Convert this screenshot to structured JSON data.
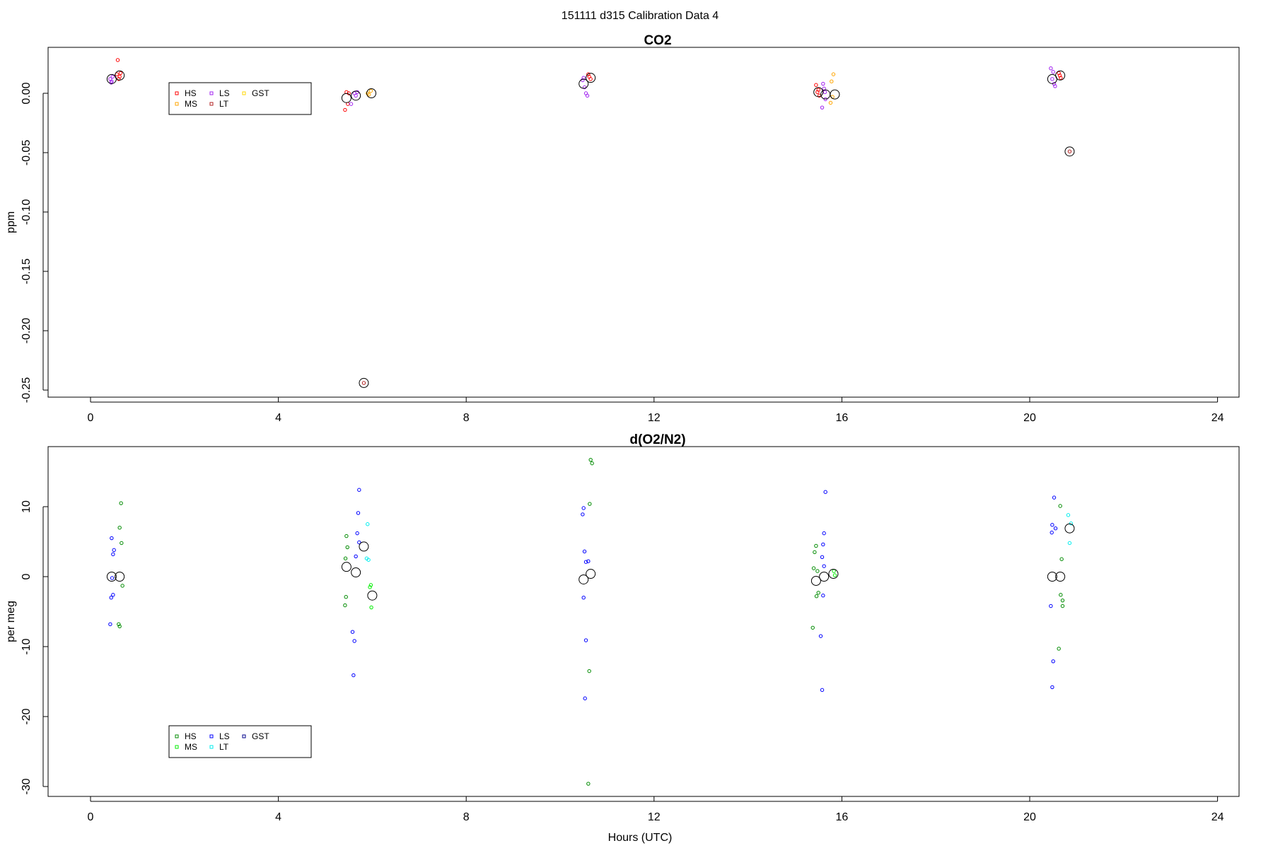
{
  "title": "151111   d315   Calibration Data 4",
  "xlabel": "Hours (UTC)",
  "chart_data": [
    {
      "type": "scatter",
      "title": "CO2",
      "xlabel": "",
      "ylabel": "ppm",
      "xlim": [
        0,
        24
      ],
      "ylim": [
        -0.25,
        0.03
      ],
      "xticks": [
        "0",
        "4",
        "8",
        "12",
        "16",
        "20",
        "24"
      ],
      "yticks": [
        "0.00",
        "-0.05",
        "-0.10",
        "-0.15",
        "-0.20",
        "-0.25"
      ],
      "legend_position": "top-left",
      "legend": [
        {
          "label": "HS",
          "color": "#ff0000"
        },
        {
          "label": "MS",
          "color": "#ffa500"
        },
        {
          "label": "LS",
          "color": "#a020f0"
        },
        {
          "label": "LT",
          "color": "#b22222"
        },
        {
          "label": "GST",
          "color": "#ffd700"
        }
      ],
      "series": [
        {
          "name": "HS",
          "color": "#ff0000",
          "points": [
            [
              0.58,
              0.028
            ],
            [
              0.56,
              0.016
            ],
            [
              0.62,
              0.014
            ],
            [
              0.6,
              0.012
            ],
            [
              0.64,
              0.017
            ],
            [
              5.42,
              -0.014
            ],
            [
              5.48,
              -0.009
            ],
            [
              5.45,
              0.001
            ],
            [
              5.5,
              0.0
            ],
            [
              10.6,
              0.016
            ],
            [
              10.65,
              0.012
            ],
            [
              10.62,
              0.014
            ],
            [
              15.45,
              0.007
            ],
            [
              15.5,
              0.003
            ],
            [
              15.52,
              -0.002
            ],
            [
              15.48,
              0.001
            ],
            [
              20.62,
              0.017
            ],
            [
              20.66,
              0.013
            ],
            [
              20.64,
              0.015
            ]
          ]
        },
        {
          "name": "MS",
          "color": "#ffa500",
          "points": [
            [
              5.93,
              -0.001
            ],
            [
              5.97,
              0.002
            ],
            [
              5.9,
              0.0
            ],
            [
              15.82,
              0.016
            ],
            [
              15.78,
              0.01
            ],
            [
              15.76,
              -0.008
            ],
            [
              15.8,
              -0.003
            ]
          ]
        },
        {
          "name": "LS",
          "color": "#a020f0",
          "points": [
            [
              0.42,
              0.012
            ],
            [
              0.45,
              0.01
            ],
            [
              0.47,
              0.014
            ],
            [
              0.44,
              0.009
            ],
            [
              5.55,
              -0.009
            ],
            [
              5.62,
              0.0
            ],
            [
              5.68,
              0.001
            ],
            [
              5.65,
              -0.002
            ],
            [
              10.48,
              0.011
            ],
            [
              10.52,
              0.005
            ],
            [
              10.55,
              0.0
            ],
            [
              10.58,
              -0.002
            ],
            [
              10.5,
              0.013
            ],
            [
              15.6,
              0.008
            ],
            [
              15.62,
              0.004
            ],
            [
              15.58,
              -0.012
            ],
            [
              15.65,
              -0.005
            ],
            [
              15.64,
              0.001
            ],
            [
              20.45,
              0.021
            ],
            [
              20.5,
              0.018
            ],
            [
              20.52,
              0.008
            ],
            [
              20.54,
              0.006
            ],
            [
              20.48,
              0.012
            ]
          ]
        },
        {
          "name": "LT",
          "color": "#b22222",
          "points": [
            [
              5.82,
              -0.244
            ],
            [
              20.85,
              -0.049
            ]
          ]
        },
        {
          "name": "GST",
          "color": "#ffd700",
          "points": []
        }
      ],
      "means": [
        [
          0.45,
          0.012
        ],
        [
          0.62,
          0.015
        ],
        [
          5.45,
          -0.004
        ],
        [
          5.65,
          -0.002
        ],
        [
          5.98,
          0.0
        ],
        [
          10.5,
          0.008
        ],
        [
          10.65,
          0.013
        ],
        [
          15.5,
          0.001
        ],
        [
          15.65,
          -0.001
        ],
        [
          15.85,
          -0.001
        ],
        [
          20.48,
          0.012
        ],
        [
          20.65,
          0.015
        ],
        [
          20.85,
          -0.049
        ],
        [
          5.82,
          -0.244
        ]
      ]
    },
    {
      "type": "scatter",
      "title": "d(O2/N2)",
      "xlabel": "Hours (UTC)",
      "ylabel": "per meg",
      "xlim": [
        0,
        24
      ],
      "ylim": [
        -30,
        18
      ],
      "xticks": [
        "0",
        "4",
        "8",
        "12",
        "16",
        "20",
        "24"
      ],
      "yticks": [
        "10",
        "0",
        "-10",
        "-20",
        "-30"
      ],
      "legend_position": "bottom-left",
      "legend": [
        {
          "label": "HS",
          "color": "#008b00"
        },
        {
          "label": "MS",
          "color": "#00ee00"
        },
        {
          "label": "LS",
          "color": "#0000ff"
        },
        {
          "label": "LT",
          "color": "#00eeee"
        },
        {
          "label": "GST",
          "color": "#00008b"
        }
      ],
      "series": [
        {
          "name": "HS",
          "color": "#008b00",
          "points": [
            [
              0.65,
              10.5
            ],
            [
              0.62,
              7.0
            ],
            [
              0.66,
              4.8
            ],
            [
              0.68,
              -1.3
            ],
            [
              0.6,
              -6.8
            ],
            [
              0.62,
              -7.1
            ],
            [
              5.45,
              5.8
            ],
            [
              5.47,
              4.2
            ],
            [
              5.43,
              2.6
            ],
            [
              5.44,
              -2.9
            ],
            [
              5.42,
              -4.1
            ],
            [
              10.65,
              16.7
            ],
            [
              10.68,
              16.2
            ],
            [
              10.63,
              10.4
            ],
            [
              10.62,
              -13.5
            ],
            [
              10.6,
              -29.6
            ],
            [
              15.45,
              4.4
            ],
            [
              15.42,
              3.5
            ],
            [
              15.4,
              1.2
            ],
            [
              15.48,
              0.8
            ],
            [
              15.5,
              -2.3
            ],
            [
              15.46,
              -2.8
            ],
            [
              15.38,
              -7.3
            ],
            [
              20.65,
              10.1
            ],
            [
              20.68,
              2.5
            ],
            [
              20.66,
              -2.6
            ],
            [
              20.7,
              -3.4
            ],
            [
              20.7,
              -4.2
            ],
            [
              20.62,
              -10.3
            ]
          ]
        },
        {
          "name": "MS",
          "color": "#00ee00",
          "points": [
            [
              5.95,
              -1.5
            ],
            [
              5.97,
              -1.2
            ],
            [
              5.98,
              -4.4
            ],
            [
              15.83,
              0.8
            ],
            [
              15.85,
              0.2
            ]
          ]
        },
        {
          "name": "LS",
          "color": "#0000ff",
          "points": [
            [
              0.45,
              5.5
            ],
            [
              0.5,
              3.8
            ],
            [
              0.48,
              3.2
            ],
            [
              0.46,
              -0.2
            ],
            [
              0.48,
              -2.6
            ],
            [
              0.44,
              -3.0
            ],
            [
              0.42,
              -6.8
            ],
            [
              5.72,
              12.4
            ],
            [
              5.7,
              9.1
            ],
            [
              5.68,
              6.2
            ],
            [
              5.72,
              4.9
            ],
            [
              5.65,
              2.9
            ],
            [
              5.58,
              -7.9
            ],
            [
              5.62,
              -9.2
            ],
            [
              5.6,
              -14.1
            ],
            [
              10.5,
              9.8
            ],
            [
              10.48,
              8.9
            ],
            [
              10.52,
              3.6
            ],
            [
              10.55,
              2.1
            ],
            [
              10.6,
              2.2
            ],
            [
              10.5,
              -3.0
            ],
            [
              10.55,
              -9.1
            ],
            [
              10.53,
              -17.4
            ],
            [
              15.65,
              12.1
            ],
            [
              15.62,
              6.2
            ],
            [
              15.6,
              4.6
            ],
            [
              15.58,
              2.8
            ],
            [
              15.62,
              1.5
            ],
            [
              15.6,
              -2.7
            ],
            [
              15.55,
              -8.5
            ],
            [
              15.58,
              -16.2
            ],
            [
              20.52,
              11.3
            ],
            [
              20.48,
              7.4
            ],
            [
              20.55,
              6.9
            ],
            [
              20.47,
              6.3
            ],
            [
              20.45,
              -4.2
            ],
            [
              20.5,
              -12.1
            ],
            [
              20.48,
              -15.8
            ]
          ]
        },
        {
          "name": "LT",
          "color": "#00eeee",
          "points": [
            [
              5.9,
              7.5
            ],
            [
              5.88,
              2.6
            ],
            [
              5.92,
              2.4
            ],
            [
              20.82,
              8.8
            ],
            [
              20.85,
              4.8
            ],
            [
              20.88,
              7.6
            ]
          ]
        },
        {
          "name": "GST",
          "color": "#00008b",
          "points": []
        }
      ],
      "means": [
        [
          0.45,
          0.0
        ],
        [
          0.62,
          0.0
        ],
        [
          5.45,
          1.4
        ],
        [
          5.65,
          0.6
        ],
        [
          5.82,
          4.3
        ],
        [
          6.0,
          -2.7
        ],
        [
          10.5,
          -0.4
        ],
        [
          10.65,
          0.4
        ],
        [
          15.45,
          -0.6
        ],
        [
          15.62,
          0.0
        ],
        [
          15.82,
          0.4
        ],
        [
          20.48,
          0.0
        ],
        [
          20.65,
          0.0
        ],
        [
          20.85,
          6.9
        ]
      ]
    }
  ]
}
